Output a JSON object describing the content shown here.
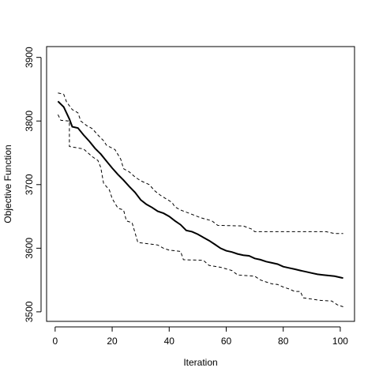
{
  "chart_data": {
    "type": "line",
    "title": "",
    "xlabel": "Iteration",
    "ylabel": "Objective Function",
    "xlim": [
      -3,
      105
    ],
    "ylim": [
      3485,
      3917
    ],
    "xticks": [
      0,
      20,
      40,
      60,
      80,
      100
    ],
    "yticks": [
      3500,
      3600,
      3700,
      3800,
      3900
    ],
    "grid": false,
    "legend": "none",
    "series": [
      {
        "style": "solid",
        "color": "#000000",
        "points": [
          [
            1,
            3831
          ],
          [
            3,
            3822
          ],
          [
            5,
            3803
          ],
          [
            6,
            3791
          ],
          [
            8,
            3789
          ],
          [
            10,
            3778
          ],
          [
            12,
            3768
          ],
          [
            14,
            3757
          ],
          [
            16,
            3748
          ],
          [
            18,
            3737
          ],
          [
            20,
            3726
          ],
          [
            22,
            3716
          ],
          [
            24,
            3707
          ],
          [
            26,
            3697
          ],
          [
            28,
            3688
          ],
          [
            30,
            3676
          ],
          [
            32,
            3669
          ],
          [
            34,
            3664
          ],
          [
            36,
            3658
          ],
          [
            38,
            3655
          ],
          [
            40,
            3650
          ],
          [
            42,
            3643
          ],
          [
            44,
            3637
          ],
          [
            46,
            3628
          ],
          [
            48,
            3626
          ],
          [
            50,
            3622
          ],
          [
            52,
            3617
          ],
          [
            54,
            3612
          ],
          [
            56,
            3606
          ],
          [
            58,
            3600
          ],
          [
            60,
            3596
          ],
          [
            62,
            3594
          ],
          [
            64,
            3591
          ],
          [
            66,
            3589
          ],
          [
            68,
            3588
          ],
          [
            70,
            3584
          ],
          [
            72,
            3582
          ],
          [
            74,
            3579
          ],
          [
            76,
            3577
          ],
          [
            78,
            3575
          ],
          [
            80,
            3571
          ],
          [
            82,
            3569
          ],
          [
            84,
            3567
          ],
          [
            86,
            3565
          ],
          [
            88,
            3563
          ],
          [
            90,
            3561
          ],
          [
            92,
            3559
          ],
          [
            94,
            3558
          ],
          [
            96,
            3557
          ],
          [
            98,
            3556
          ],
          [
            100,
            3554
          ],
          [
            101,
            3553
          ]
        ]
      },
      {
        "style": "dashed",
        "color": "#000000",
        "points": [
          [
            1,
            3844
          ],
          [
            3,
            3842
          ],
          [
            4,
            3830
          ],
          [
            6,
            3818
          ],
          [
            8,
            3813
          ],
          [
            9,
            3800
          ],
          [
            11,
            3793
          ],
          [
            13,
            3788
          ],
          [
            15,
            3778
          ],
          [
            17,
            3769
          ],
          [
            18,
            3762
          ],
          [
            21,
            3755
          ],
          [
            23,
            3740
          ],
          [
            24,
            3725
          ],
          [
            26,
            3720
          ],
          [
            28,
            3712
          ],
          [
            30,
            3706
          ],
          [
            33,
            3700
          ],
          [
            35,
            3690
          ],
          [
            37,
            3683
          ],
          [
            41,
            3672
          ],
          [
            42,
            3665
          ],
          [
            44,
            3660
          ],
          [
            47,
            3655
          ],
          [
            51,
            3648
          ],
          [
            55,
            3643
          ],
          [
            57,
            3636
          ],
          [
            66,
            3635
          ],
          [
            69,
            3630
          ],
          [
            70,
            3626
          ],
          [
            95,
            3626
          ],
          [
            98,
            3623
          ],
          [
            101,
            3623
          ]
        ]
      },
      {
        "style": "dashed",
        "color": "#000000",
        "points": [
          [
            1,
            3810
          ],
          [
            2,
            3801
          ],
          [
            5,
            3800
          ],
          [
            5,
            3760
          ],
          [
            10,
            3756
          ],
          [
            13,
            3744
          ],
          [
            15,
            3738
          ],
          [
            16,
            3727
          ],
          [
            17,
            3702
          ],
          [
            19,
            3692
          ],
          [
            20,
            3678
          ],
          [
            22,
            3663
          ],
          [
            24,
            3660
          ],
          [
            25,
            3643
          ],
          [
            27,
            3640
          ],
          [
            29,
            3609
          ],
          [
            36,
            3605
          ],
          [
            38,
            3600
          ],
          [
            40,
            3597
          ],
          [
            44,
            3595
          ],
          [
            45,
            3582
          ],
          [
            52,
            3581
          ],
          [
            54,
            3573
          ],
          [
            58,
            3570
          ],
          [
            62,
            3565
          ],
          [
            64,
            3558
          ],
          [
            70,
            3556
          ],
          [
            72,
            3550
          ],
          [
            74,
            3547
          ],
          [
            76,
            3544
          ],
          [
            78,
            3543
          ],
          [
            80,
            3539
          ],
          [
            82,
            3536
          ],
          [
            84,
            3532
          ],
          [
            86,
            3532
          ],
          [
            87,
            3522
          ],
          [
            93,
            3518
          ],
          [
            97,
            3517
          ],
          [
            99,
            3511
          ],
          [
            101,
            3508
          ]
        ]
      }
    ]
  }
}
